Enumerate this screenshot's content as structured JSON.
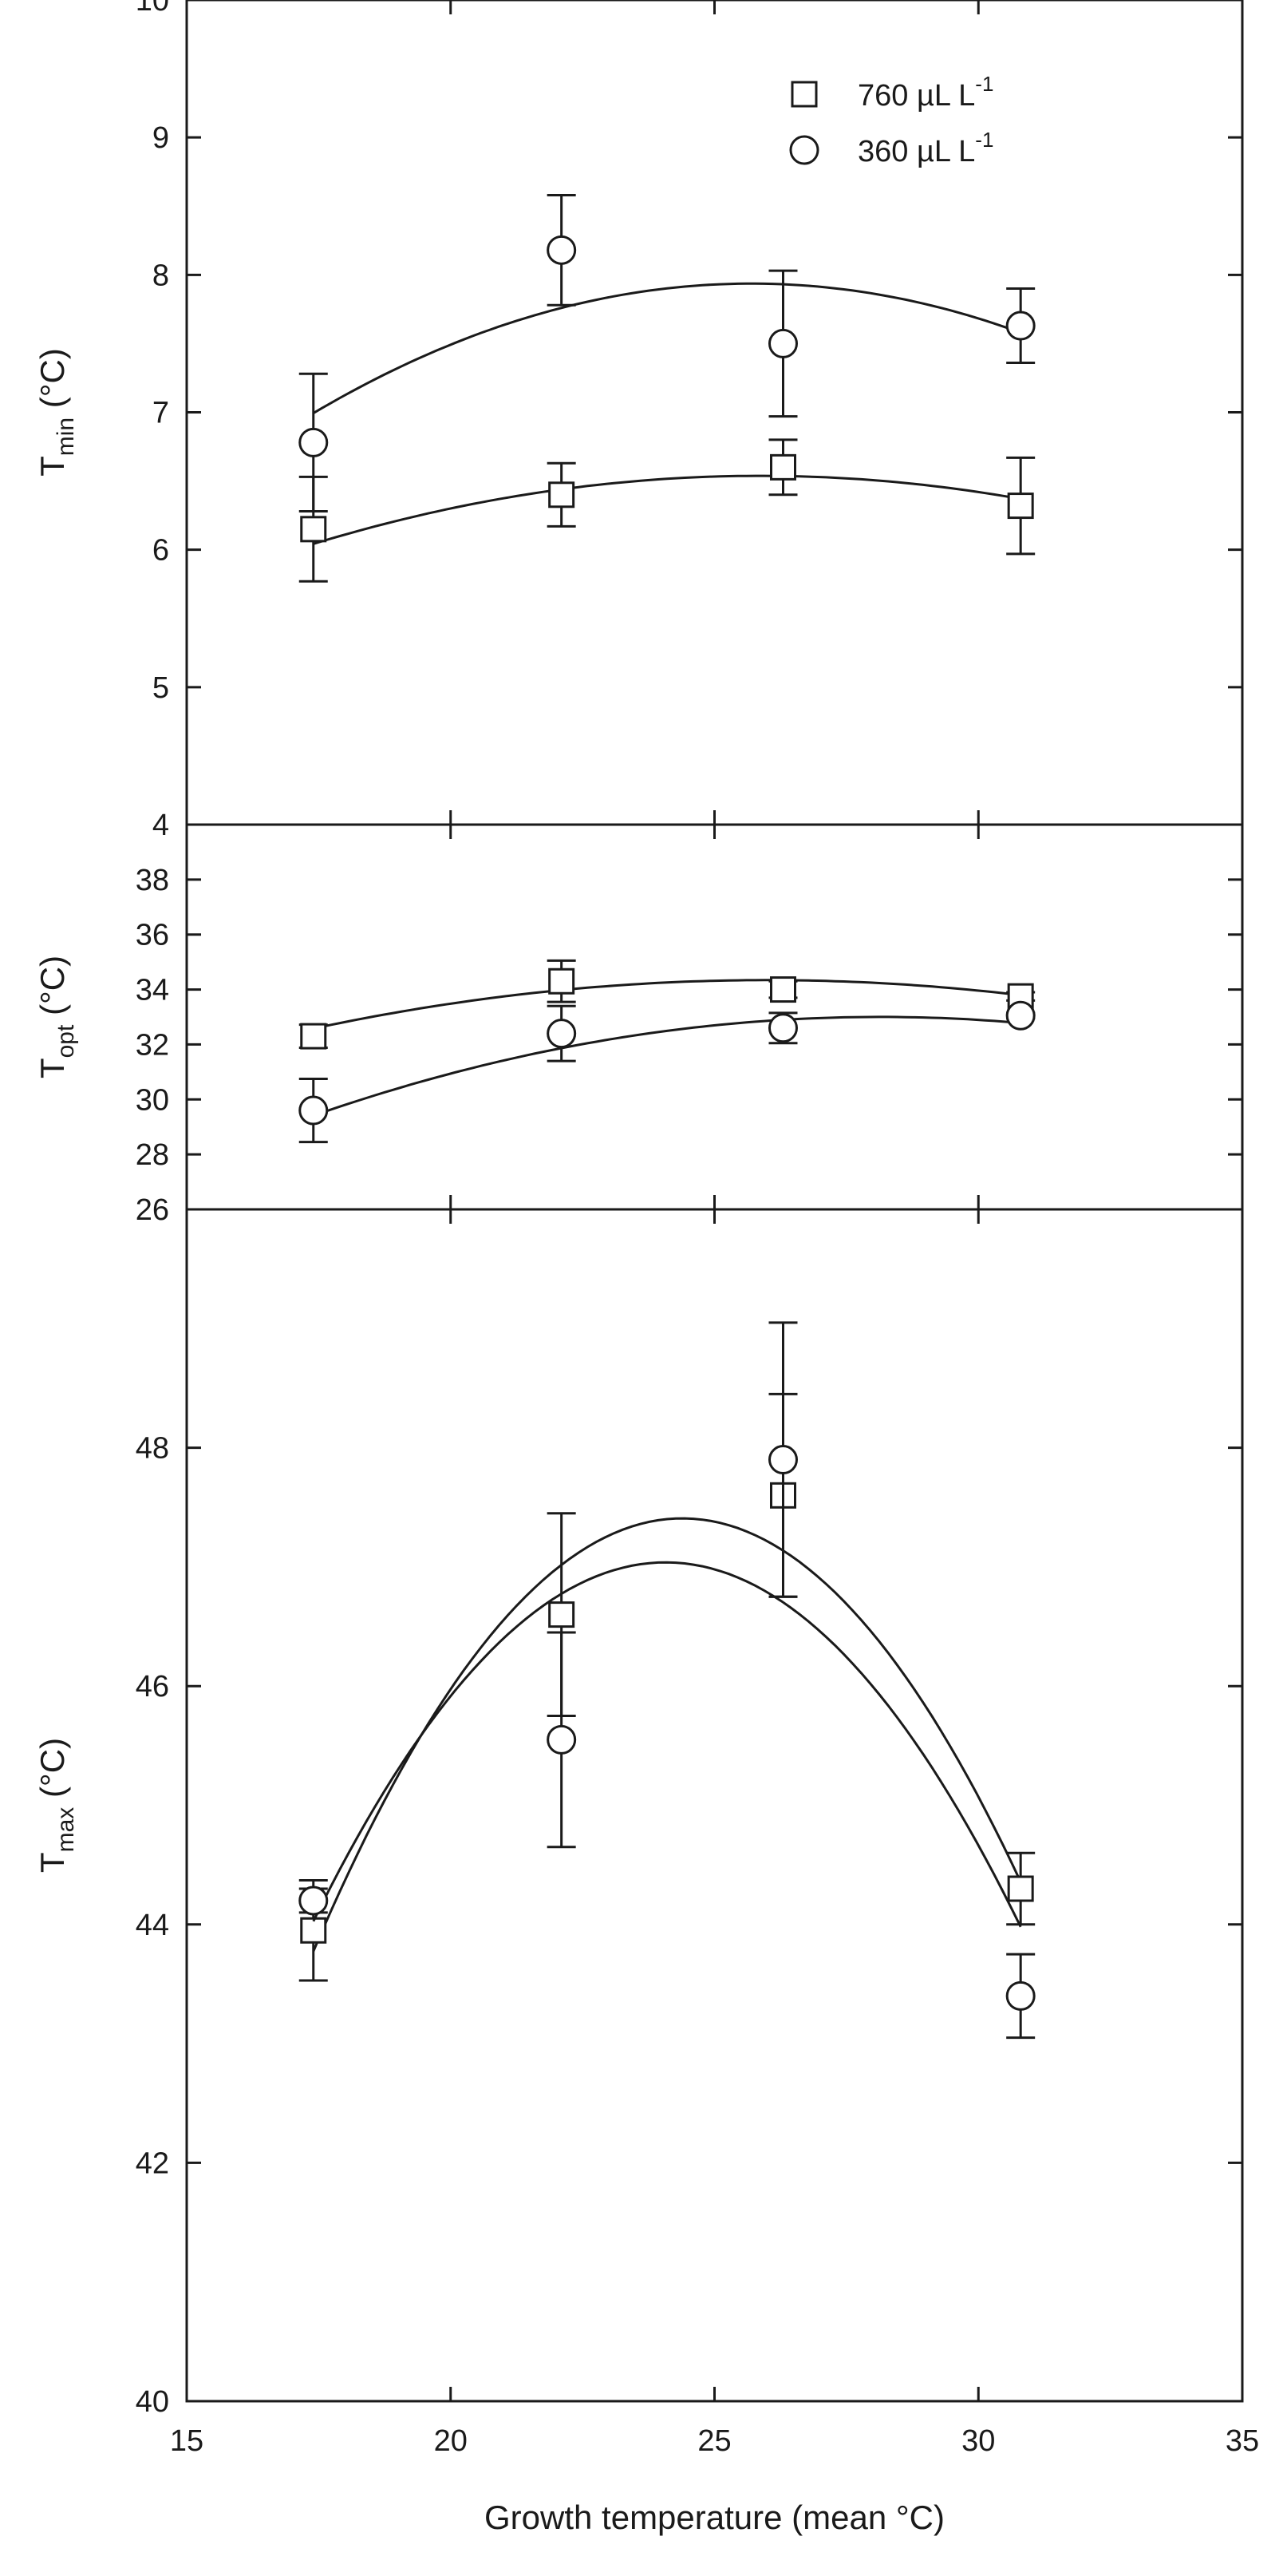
{
  "chart_data": [
    {
      "type": "scatter",
      "ylabel": "T",
      "ylabel_sub": "min",
      "ylabel_unit": " (°C)",
      "ylim": [
        4,
        10
      ],
      "yticks": [
        "4",
        "5",
        "6",
        "7",
        "8",
        "9",
        "10"
      ],
      "series": [
        {
          "name": "760 µL L",
          "name_sup": "-1",
          "marker": "square",
          "x": [
            17.4,
            22.1,
            26.3,
            30.8
          ],
          "y": [
            6.15,
            6.4,
            6.6,
            6.32
          ],
          "err": [
            0.38,
            0.23,
            0.2,
            0.35
          ],
          "fit": [
            -0.0069,
            0.357,
            1.92
          ]
        },
        {
          "name": "360 µL L",
          "name_sup": "-1",
          "marker": "circle",
          "x": [
            17.4,
            22.1,
            26.3,
            30.8
          ],
          "y": [
            6.78,
            8.18,
            7.5,
            7.63
          ],
          "err": [
            0.5,
            0.4,
            0.53,
            0.27
          ],
          "fit": [
            -0.0137,
            0.7041,
            -1.11
          ]
        }
      ]
    },
    {
      "type": "scatter",
      "ylabel": "T",
      "ylabel_sub": "opt",
      "ylabel_unit": " (°C)",
      "ylim": [
        26,
        40
      ],
      "yticks": [
        "26",
        "28",
        "30",
        "32",
        "34",
        "36",
        "38"
      ],
      "series": [
        {
          "name": "760 µL L",
          "marker": "square",
          "x": [
            17.4,
            22.1,
            26.3,
            30.8
          ],
          "y": [
            32.3,
            34.3,
            34.0,
            33.75
          ],
          "err": [
            0.42,
            0.75,
            0.3,
            0.15
          ],
          "fit": [
            -0.0238,
            1.2377,
            18.25
          ]
        },
        {
          "name": "360 µL L",
          "marker": "circle",
          "x": [
            17.4,
            22.1,
            26.3,
            30.8
          ],
          "y": [
            29.6,
            32.4,
            32.6,
            33.05
          ],
          "err": [
            1.15,
            1.0,
            0.55,
            0.1
          ],
          "fit": [
            -0.0311,
            1.7505,
            8.37
          ]
        }
      ]
    },
    {
      "type": "scatter",
      "xlabel": "Growth temperature (mean °C)",
      "ylabel": "T",
      "ylabel_sub": "max",
      "ylabel_unit": " (°C)",
      "xlim": [
        15,
        35
      ],
      "xticks": [
        "15",
        "20",
        "25",
        "30",
        "35"
      ],
      "ylim": [
        40,
        50
      ],
      "yticks": [
        "40",
        "42",
        "44",
        "46",
        "48"
      ],
      "series": [
        {
          "name": "760 µL L",
          "marker": "square",
          "x": [
            17.4,
            22.1,
            26.3,
            30.8
          ],
          "y": [
            43.95,
            46.6,
            47.6,
            44.3
          ],
          "err": [
            0.42,
            0.85,
            0.85,
            0.3
          ],
          "fit": [
            -0.0743,
            3.6247,
            3.2
          ]
        },
        {
          "name": "360 µL L",
          "marker": "circle",
          "x": [
            17.4,
            22.1,
            26.3,
            30.8
          ],
          "y": [
            44.2,
            45.55,
            47.9,
            43.4
          ],
          "err": [
            0.1,
            0.9,
            1.15,
            0.35
          ],
          "fit": [
            -0.0676,
            3.2548,
            7.86
          ]
        }
      ]
    }
  ]
}
